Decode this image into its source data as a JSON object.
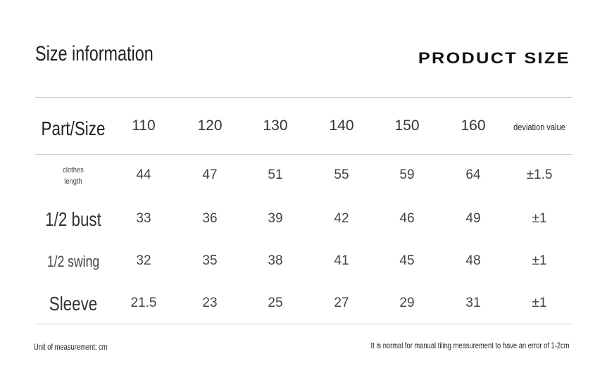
{
  "header": {
    "title": "Size information",
    "brand": "PRODUCT SIZE"
  },
  "table": {
    "columns": [
      "Part/Size",
      "110",
      "120",
      "130",
      "140",
      "150",
      "160",
      "deviation value"
    ],
    "rows": [
      [
        "clothes length",
        "44",
        "47",
        "51",
        "55",
        "59",
        "64",
        "±1.5"
      ],
      [
        "1/2 bust",
        "33",
        "36",
        "39",
        "42",
        "46",
        "49",
        "±1"
      ],
      [
        "1/2 swing",
        "32",
        "35",
        "38",
        "41",
        "45",
        "48",
        "±1"
      ],
      [
        "Sleeve",
        "21.5",
        "23",
        "25",
        "27",
        "29",
        "31",
        "±1"
      ]
    ]
  },
  "footer": {
    "unit_note": "Unit of measurement: cm",
    "error_note": "It is normal for manual tiling measurement to have an error of 1-2cm"
  }
}
